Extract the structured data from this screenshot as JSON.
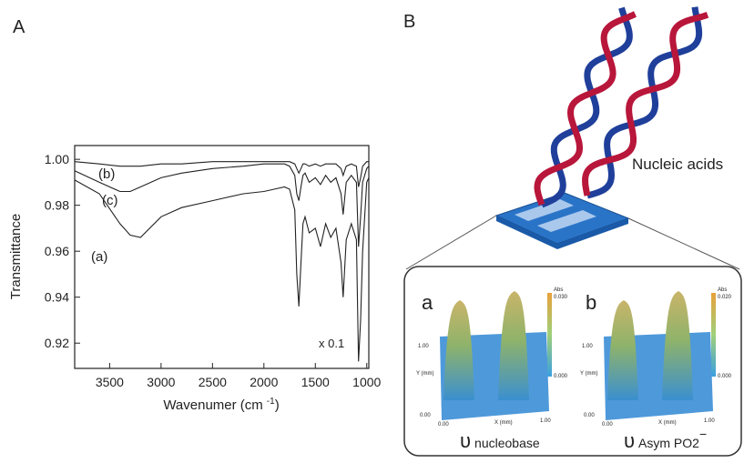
{
  "panel_labels": [
    "A",
    "B"
  ],
  "chart_data": {
    "type": "line",
    "xlabel": "Wavenumer (cm",
    "xlabel_sup": "-1",
    "xlabel_end": ")",
    "ylabel": "Transmittance",
    "annotation": "x 0.1",
    "x": [
      3840,
      3600,
      3400,
      3300,
      3200,
      3000,
      2800,
      2500,
      2200,
      2000,
      1900,
      1800,
      1750,
      1700,
      1680,
      1660,
      1640,
      1620,
      1600,
      1560,
      1500,
      1450,
      1400,
      1350,
      1300,
      1250,
      1230,
      1200,
      1150,
      1100,
      1080,
      1060,
      1040,
      1000,
      980
    ],
    "series": [
      {
        "name": "(a)",
        "color": "#222222",
        "values": [
          0.991,
          0.985,
          0.972,
          0.967,
          0.966,
          0.975,
          0.979,
          0.982,
          0.985,
          0.986,
          0.987,
          0.988,
          0.987,
          0.978,
          0.95,
          0.936,
          0.955,
          0.972,
          0.975,
          0.968,
          0.97,
          0.962,
          0.972,
          0.966,
          0.97,
          0.955,
          0.94,
          0.965,
          0.972,
          0.965,
          0.912,
          0.93,
          0.96,
          0.99,
          0.992
        ]
      },
      {
        "name": "(b)",
        "color": "#222222",
        "values": [
          0.999,
          0.998,
          0.997,
          0.997,
          0.997,
          0.998,
          0.998,
          0.999,
          0.999,
          0.999,
          0.999,
          0.999,
          0.999,
          0.998,
          0.996,
          0.994,
          0.996,
          0.998,
          0.998,
          0.997,
          0.998,
          0.997,
          0.998,
          0.998,
          0.998,
          0.996,
          0.993,
          0.997,
          0.998,
          0.997,
          0.988,
          0.992,
          0.997,
          0.999,
          0.999
        ]
      },
      {
        "name": "(c)",
        "color": "#222222",
        "values": [
          0.995,
          0.99,
          0.986,
          0.986,
          0.988,
          0.992,
          0.994,
          0.996,
          0.997,
          0.998,
          0.998,
          0.998,
          0.997,
          0.993,
          0.985,
          0.982,
          0.988,
          0.993,
          0.994,
          0.99,
          0.992,
          0.989,
          0.993,
          0.99,
          0.992,
          0.985,
          0.976,
          0.99,
          0.993,
          0.99,
          0.962,
          0.975,
          0.99,
          0.996,
          0.997
        ]
      }
    ],
    "xlim": [
      3840,
      980
    ],
    "ylim": [
      0.909,
      1.006
    ],
    "xticks": [
      3500,
      3000,
      2500,
      2000,
      1500,
      1000
    ],
    "yticks": [
      {
        "value": 1,
        "label": "1.00"
      },
      0.98,
      0.96,
      0.94,
      0.92
    ]
  },
  "diagram": {
    "label": "Nucleic acids",
    "axis_texts": {
      "abs": "Abs",
      "y": "Y (mm)",
      "x": "X (mm)",
      "zero": "0.00",
      "one": "1.00"
    },
    "insets": [
      {
        "letter": "a",
        "symbol": "υ",
        "subscript": "nucleobase",
        "superscript": "",
        "scale_max": "0.030",
        "scale_min": "0.000"
      },
      {
        "letter": "b",
        "symbol": "υ",
        "subscript": "Asym PO2",
        "superscript": "−",
        "scale_max": "0.020",
        "scale_min": "0.000"
      }
    ]
  }
}
